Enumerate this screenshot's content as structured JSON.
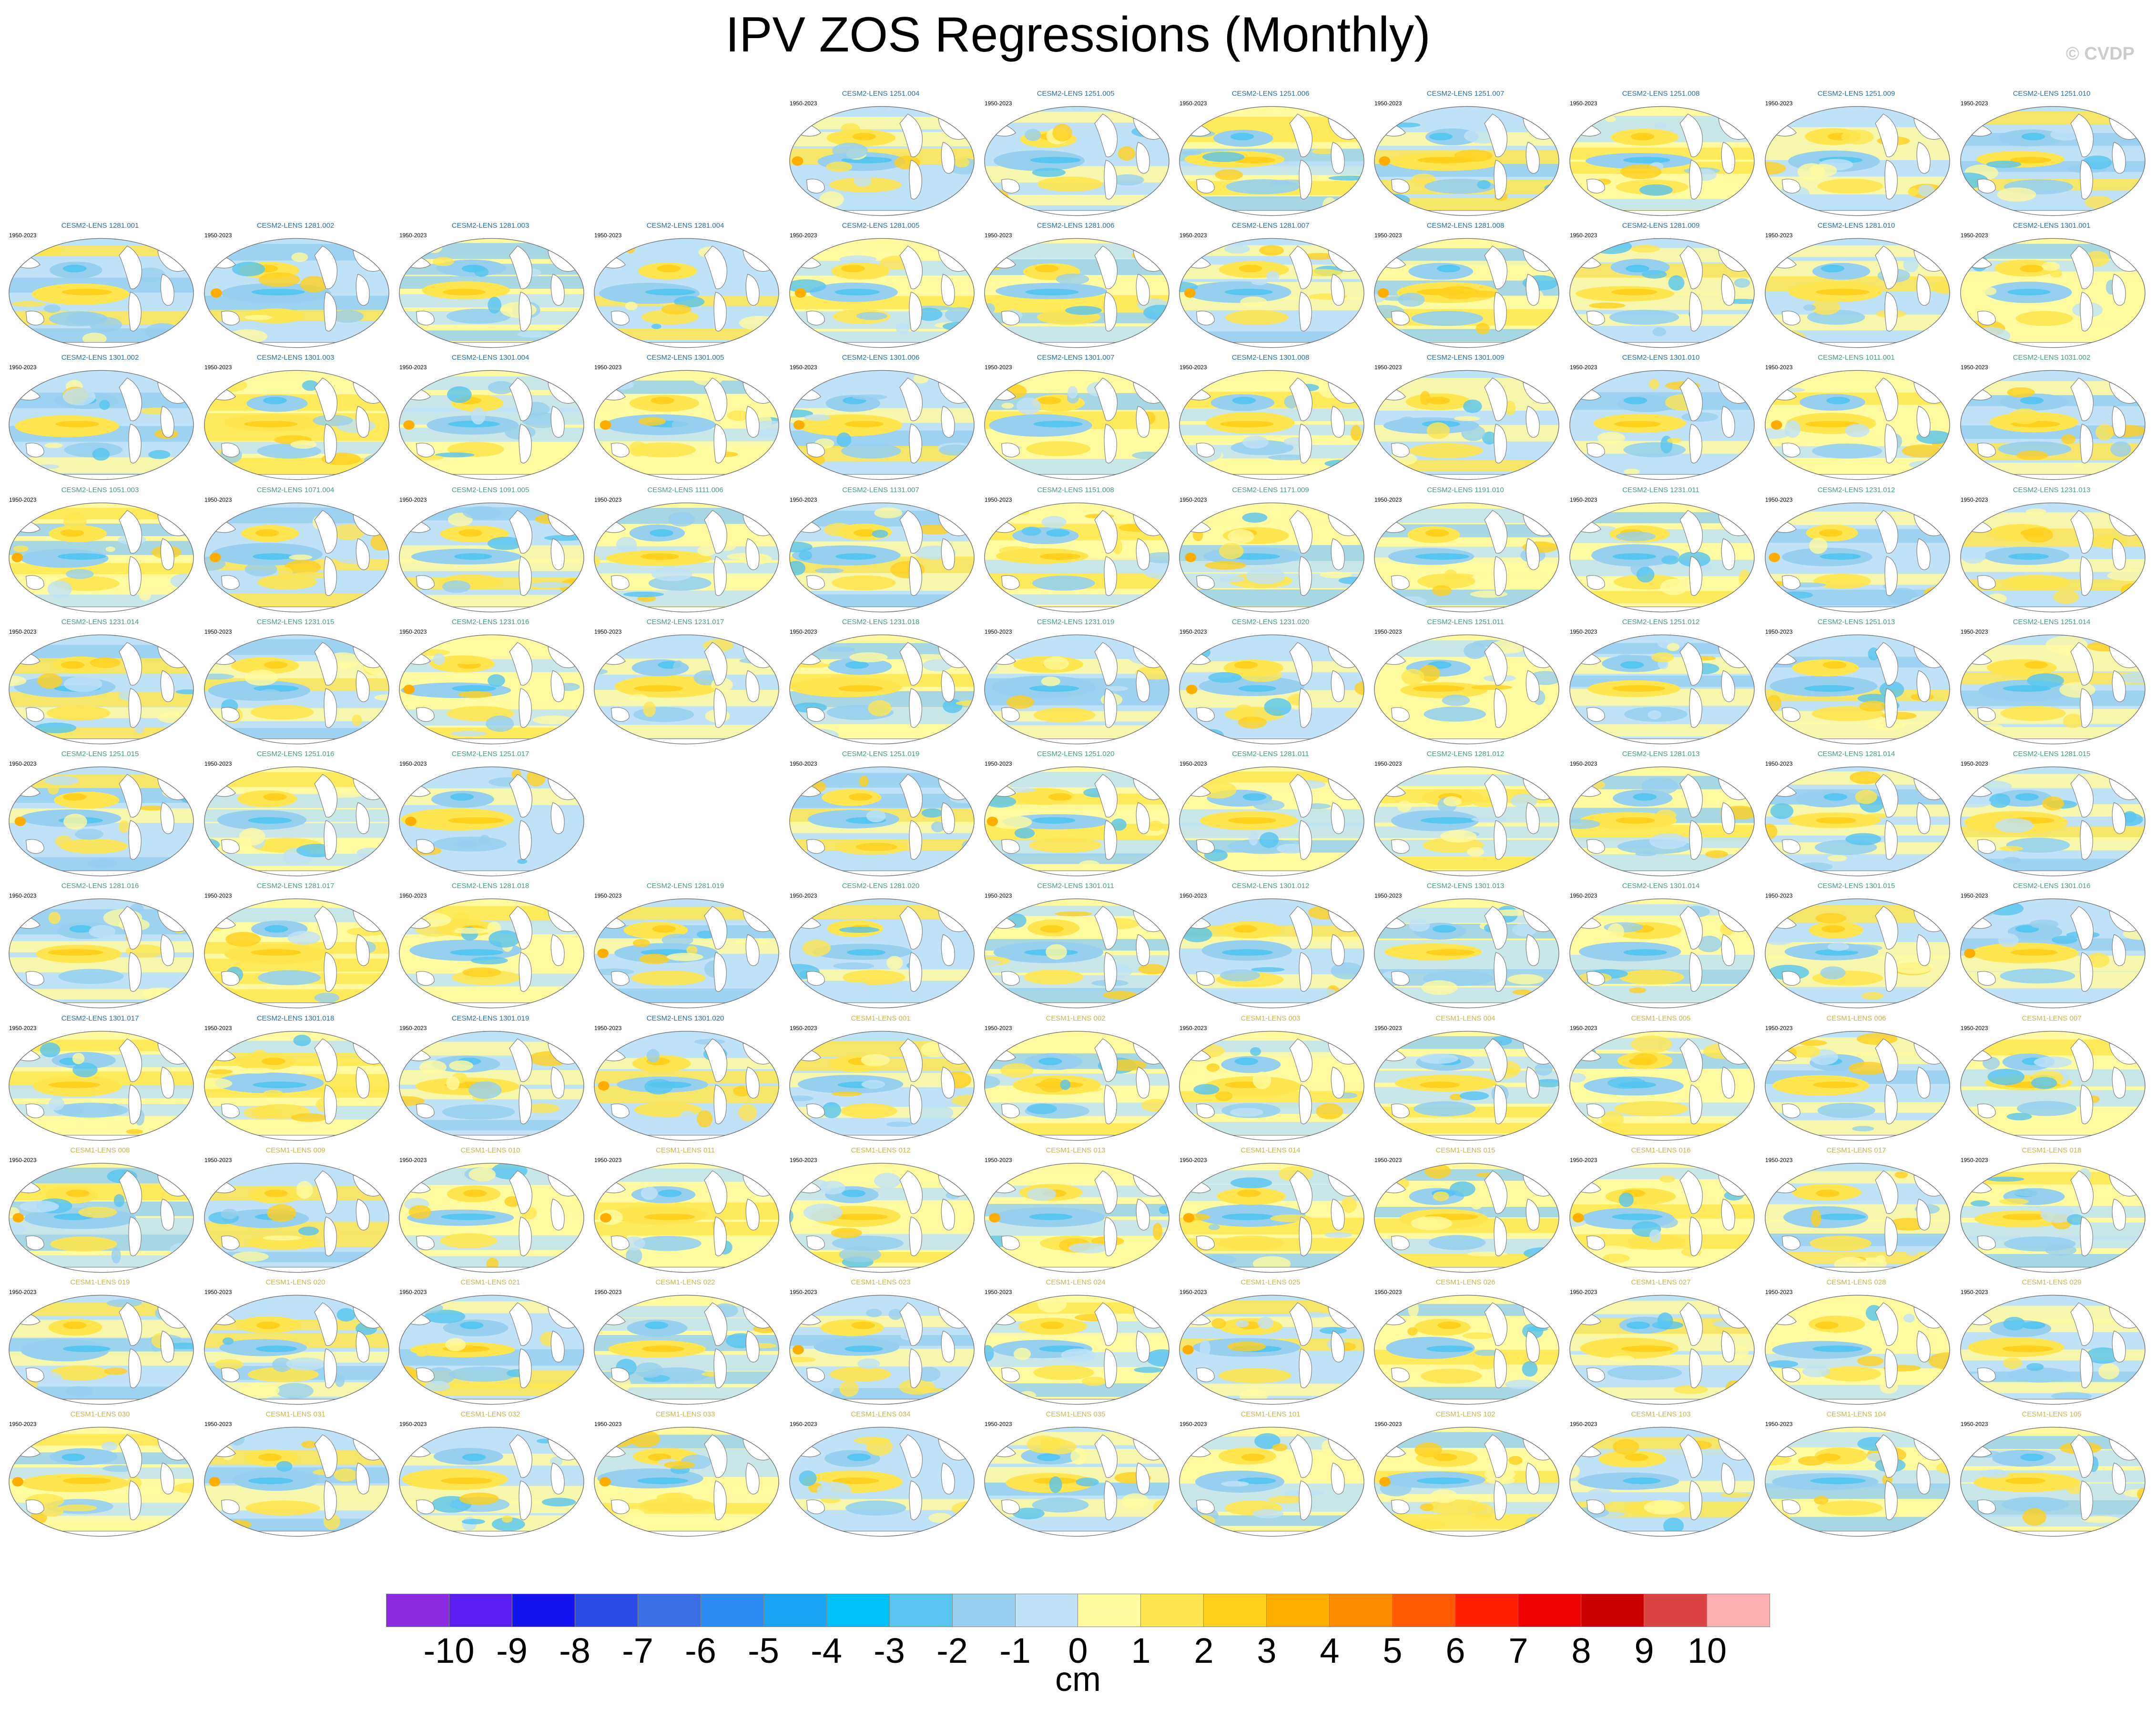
{
  "title": "IPV ZOS Regressions (Monthly)",
  "watermark": "© CVDP",
  "period": "1950-2023",
  "colors": {
    "ocean_neutral": "#ffffff",
    "land": "#ffffff",
    "coast": "#808080"
  },
  "panel_rows": [
    [
      "",
      "",
      "",
      "",
      "CESM2-LENS 1251.004",
      "CESM2-LENS 1251.005",
      "CESM2-LENS 1251.006",
      "CESM2-LENS 1251.007",
      "CESM2-LENS 1251.008",
      "CESM2-LENS 1251.009",
      "CESM2-LENS 1251.010"
    ],
    [
      "CESM2-LENS 1281.001",
      "CESM2-LENS 1281.002",
      "CESM2-LENS 1281.003",
      "CESM2-LENS 1281.004",
      "CESM2-LENS 1281.005",
      "CESM2-LENS 1281.006",
      "CESM2-LENS 1281.007",
      "CESM2-LENS 1281.008",
      "CESM2-LENS 1281.009",
      "CESM2-LENS 1281.010",
      "CESM2-LENS 1301.001"
    ],
    [
      "CESM2-LENS 1301.002",
      "CESM2-LENS 1301.003",
      "CESM2-LENS 1301.004",
      "CESM2-LENS 1301.005",
      "CESM2-LENS 1301.006",
      "CESM2-LENS 1301.007",
      "CESM2-LENS 1301.008",
      "CESM2-LENS 1301.009",
      "CESM2-LENS 1301.010",
      "CESM2-LENS 1011.001",
      "CESM2-LENS 1031.002"
    ],
    [
      "CESM2-LENS 1051.003",
      "CESM2-LENS 1071.004",
      "CESM2-LENS 1091.005",
      "CESM2-LENS 1111.006",
      "CESM2-LENS 1131.007",
      "CESM2-LENS 1151.008",
      "CESM2-LENS 1171.009",
      "CESM2-LENS 1191.010",
      "CESM2-LENS 1231.011",
      "CESM2-LENS 1231.012",
      "CESM2-LENS 1231.013"
    ],
    [
      "CESM2-LENS 1231.014",
      "CESM2-LENS 1231.015",
      "CESM2-LENS 1231.016",
      "CESM2-LENS 1231.017",
      "CESM2-LENS 1231.018",
      "CESM2-LENS 1231.019",
      "CESM2-LENS 1231.020",
      "CESM2-LENS 1251.011",
      "CESM2-LENS 1251.012",
      "CESM2-LENS 1251.013",
      "CESM2-LENS 1251.014"
    ],
    [
      "CESM2-LENS 1251.015",
      "CESM2-LENS 1251.016",
      "CESM2-LENS 1251.017",
      "",
      "CESM2-LENS 1251.019",
      "CESM2-LENS 1251.020",
      "CESM2-LENS 1281.011",
      "CESM2-LENS 1281.012",
      "CESM2-LENS 1281.013",
      "CESM2-LENS 1281.014",
      "CESM2-LENS 1281.015"
    ],
    [
      "CESM2-LENS 1281.016",
      "CESM2-LENS 1281.017",
      "CESM2-LENS 1281.018",
      "CESM2-LENS 1281.019",
      "CESM2-LENS 1281.020",
      "CESM2-LENS 1301.011",
      "CESM2-LENS 1301.012",
      "CESM2-LENS 1301.013",
      "CESM2-LENS 1301.014",
      "CESM2-LENS 1301.015",
      "CESM2-LENS 1301.016"
    ],
    [
      "CESM2-LENS 1301.017",
      "CESM2-LENS 1301.018",
      "CESM2-LENS 1301.019",
      "CESM2-LENS 1301.020",
      "CESM1-LENS 001",
      "CESM1-LENS 002",
      "CESM1-LENS 003",
      "CESM1-LENS 004",
      "CESM1-LENS 005",
      "CESM1-LENS 006",
      "CESM1-LENS 007"
    ],
    [
      "CESM1-LENS 008",
      "CESM1-LENS 009",
      "CESM1-LENS 010",
      "CESM1-LENS 011",
      "CESM1-LENS 012",
      "CESM1-LENS 013",
      "CESM1-LENS 014",
      "CESM1-LENS 015",
      "CESM1-LENS 016",
      "CESM1-LENS 017",
      "CESM1-LENS 018"
    ],
    [
      "CESM1-LENS 019",
      "CESM1-LENS 020",
      "CESM1-LENS 021",
      "CESM1-LENS 022",
      "CESM1-LENS 023",
      "CESM1-LENS 024",
      "CESM1-LENS 025",
      "CESM1-LENS 026",
      "CESM1-LENS 027",
      "CESM1-LENS 028",
      "CESM1-LENS 029"
    ],
    [
      "CESM1-LENS 030",
      "CESM1-LENS 031",
      "CESM1-LENS 032",
      "CESM1-LENS 033",
      "CESM1-LENS 034",
      "CESM1-LENS 035",
      "CESM1-LENS 101",
      "CESM1-LENS 102",
      "CESM1-LENS 103",
      "CESM1-LENS 104",
      "CESM1-LENS 105"
    ]
  ],
  "colorbar": {
    "units": "cm",
    "labels": [
      "-10",
      "-9",
      "-8",
      "-7",
      "-6",
      "-5",
      "-4",
      "-3",
      "-2",
      "-1",
      "0",
      "1",
      "2",
      "3",
      "4",
      "5",
      "6",
      "7",
      "8",
      "9",
      "10"
    ],
    "colors": [
      "#8a2be2",
      "#5a1ef0",
      "#1414f0",
      "#2a4de8",
      "#3a6ee6",
      "#2a8cf4",
      "#1aa4f4",
      "#00c0f8",
      "#58c4f0",
      "#96d0ee",
      "#bfe2f6",
      "#fffaa0",
      "#ffe650",
      "#ffd01e",
      "#ffae00",
      "#ff8c00",
      "#ff5a00",
      "#ff2000",
      "#f00000",
      "#cc0000",
      "#dc4444",
      "#ffb0b0"
    ]
  }
}
